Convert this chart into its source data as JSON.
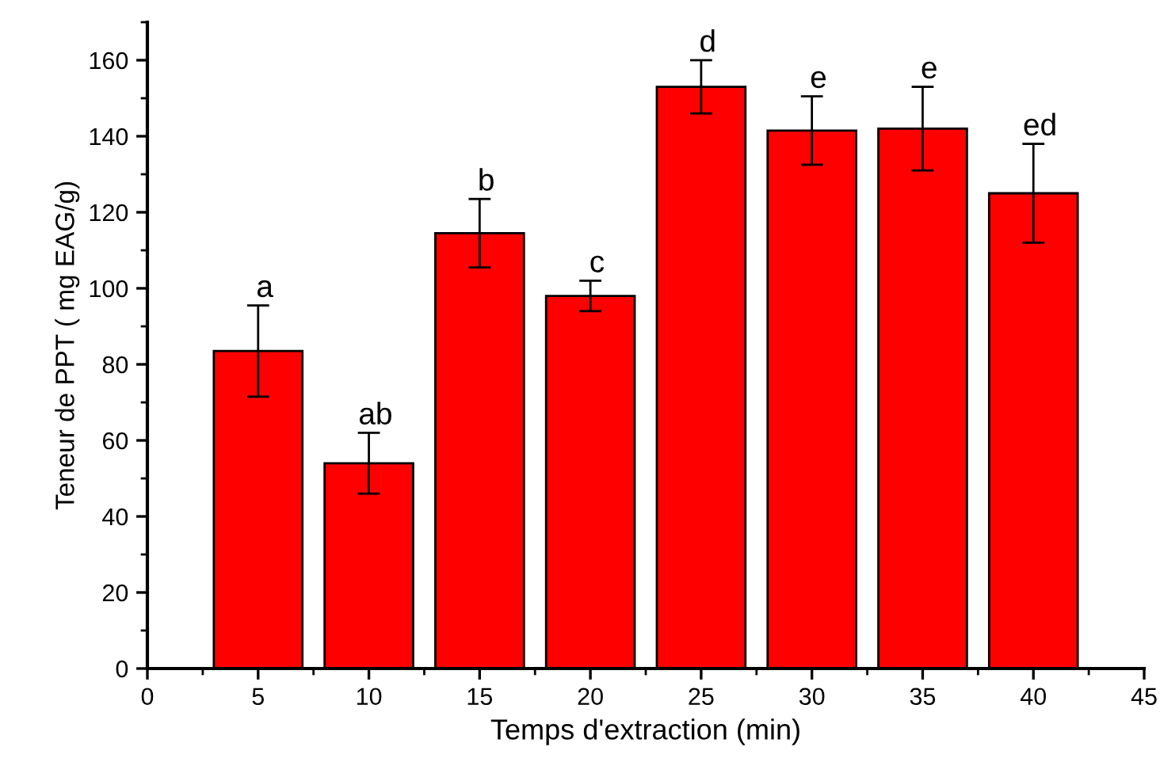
{
  "chart_data": {
    "type": "bar",
    "xlabel": "Temps d'extraction (min)",
    "ylabel": "Teneur de PPT ( mg EAG/g)",
    "x": [
      5,
      10,
      15,
      20,
      25,
      30,
      35,
      40
    ],
    "values": [
      83.5,
      54,
      114.5,
      98,
      153,
      141.5,
      142,
      125
    ],
    "errors": [
      12,
      8,
      9,
      4,
      7,
      9,
      11,
      13
    ],
    "color": "#ff0000",
    "xlim": [
      0,
      45
    ],
    "xticks": [
      0,
      5,
      10,
      15,
      20,
      25,
      30,
      35,
      40,
      45
    ],
    "ylim": [
      0,
      170
    ],
    "yticks": [
      0,
      20,
      40,
      60,
      80,
      100,
      120,
      140,
      160
    ],
    "grid": false,
    "annotations": [
      {
        "text": "a",
        "x": 5,
        "y": 95.5
      },
      {
        "text": "ab",
        "x": 10,
        "y": 62
      },
      {
        "text": "b",
        "x": 15,
        "y": 123.5
      },
      {
        "text": "c",
        "x": 20,
        "y": 102
      },
      {
        "text": "d",
        "x": 25,
        "y": 160
      },
      {
        "text": "e",
        "x": 30,
        "y": 150.5
      },
      {
        "text": "e",
        "x": 35,
        "y": 153
      },
      {
        "text": "ed",
        "x": 40,
        "y": 138
      }
    ]
  }
}
